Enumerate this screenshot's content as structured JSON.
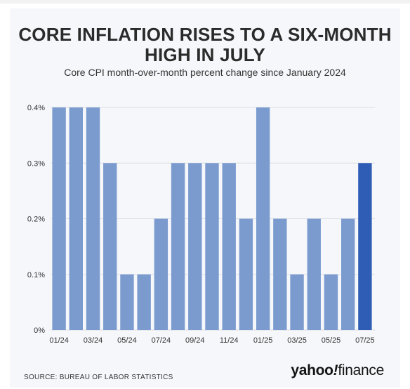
{
  "title": "CORE INFLATION RISES TO A SIX-MONTH HIGH IN JULY",
  "subtitle": "Core CPI month-over-month percent change since January 2024",
  "source": "SOURCE: BUREAU OF LABOR STATISTICS",
  "logo": {
    "part1": "yahoo",
    "part2": "!",
    "part3": "finance"
  },
  "colors": {
    "bar": "#7b9bcf",
    "highlight": "#2f5db5",
    "grid": "#d9dde3",
    "text": "#333333"
  },
  "chart_data": {
    "type": "bar",
    "categories": [
      "01/24",
      "02/24",
      "03/24",
      "04/24",
      "05/24",
      "06/24",
      "07/24",
      "08/24",
      "09/24",
      "10/24",
      "11/24",
      "12/24",
      "01/25",
      "02/25",
      "03/25",
      "04/25",
      "05/25",
      "06/25",
      "07/25"
    ],
    "values": [
      0.4,
      0.4,
      0.4,
      0.3,
      0.1,
      0.1,
      0.2,
      0.3,
      0.3,
      0.3,
      0.3,
      0.2,
      0.4,
      0.2,
      0.1,
      0.2,
      0.1,
      0.2,
      0.3
    ],
    "x_tick_labels": [
      "01/24",
      "03/24",
      "05/24",
      "07/24",
      "09/24",
      "11/24",
      "01/25",
      "03/25",
      "05/25",
      "07/25"
    ],
    "y_ticks": [
      0,
      0.1,
      0.2,
      0.3,
      0.4
    ],
    "y_tick_labels": [
      "0%",
      "0.1%",
      "0.2%",
      "0.3%",
      "0.4%"
    ],
    "ylim": [
      0,
      0.4
    ],
    "highlighted_category": "07/25",
    "grid": true,
    "xlabel": "",
    "ylabel": ""
  }
}
